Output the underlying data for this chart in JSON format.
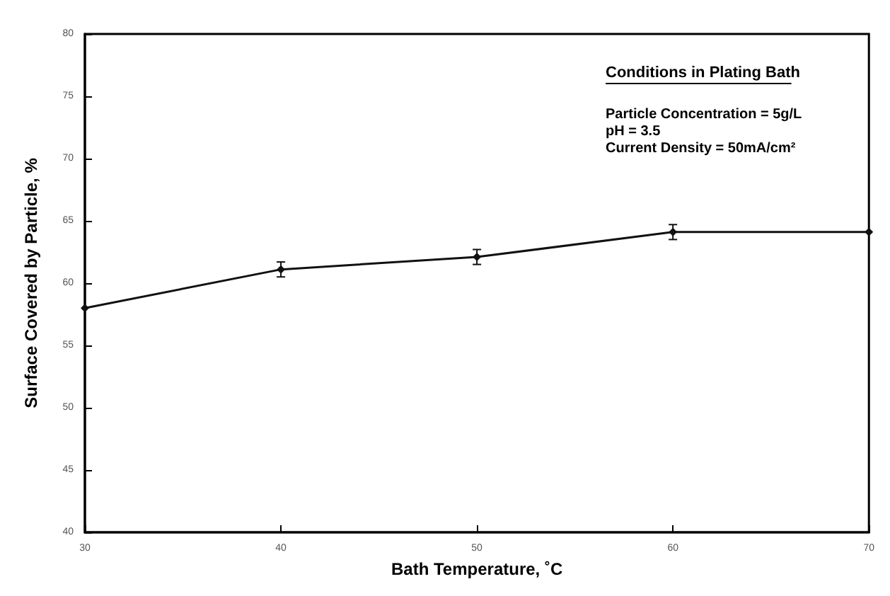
{
  "chart_data": {
    "type": "line",
    "xlabel": "Bath Temperature, ˚C",
    "ylabel": "Surface Covered by Particle, %",
    "x": [
      30,
      40,
      50,
      60,
      70
    ],
    "series": [
      {
        "color": "#111111",
        "values": [
          58.0,
          61.1,
          62.1,
          64.1,
          64.1
        ],
        "errors": [
          null,
          0.6,
          0.6,
          0.6,
          null
        ]
      }
    ],
    "xlim": [
      30,
      70
    ],
    "xticks": [
      30,
      40,
      50,
      60,
      70
    ],
    "ylim": [
      40,
      80
    ],
    "yticks": [
      40,
      45,
      50,
      55,
      60,
      65,
      70,
      75,
      80
    ],
    "grid": false,
    "marker": "diamond",
    "line_style": "solid",
    "annotations": [
      "Conditions in Plating Bath",
      "Particle Concentration = 5g/L",
      "pH = 3.5",
      "Current Density = 50mA/cm²"
    ]
  }
}
